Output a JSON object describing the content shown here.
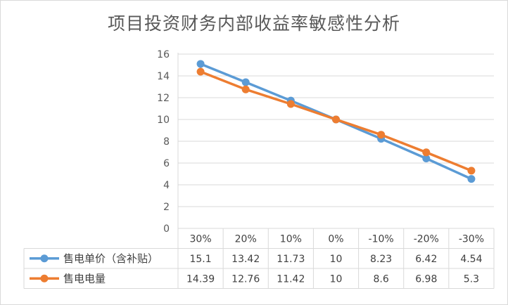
{
  "chart_data": {
    "type": "line",
    "title": "项目投资财务内部收益率敏感性分析",
    "categories": [
      "30%",
      "20%",
      "10%",
      "0%",
      "-10%",
      "-20%",
      "-30%"
    ],
    "series": [
      {
        "name": "售电单价（含补贴）",
        "color": "#5b9bd5",
        "values": [
          15.1,
          13.42,
          11.73,
          10,
          8.23,
          6.42,
          4.54
        ]
      },
      {
        "name": "售电电量",
        "color": "#ed7d31",
        "values": [
          14.39,
          12.76,
          11.42,
          10,
          8.6,
          6.98,
          5.3
        ]
      }
    ],
    "ylim": [
      0,
      16
    ],
    "yticks": [
      0,
      2,
      4,
      6,
      8,
      10,
      12,
      14,
      16
    ],
    "grid": true,
    "data_table": true
  }
}
